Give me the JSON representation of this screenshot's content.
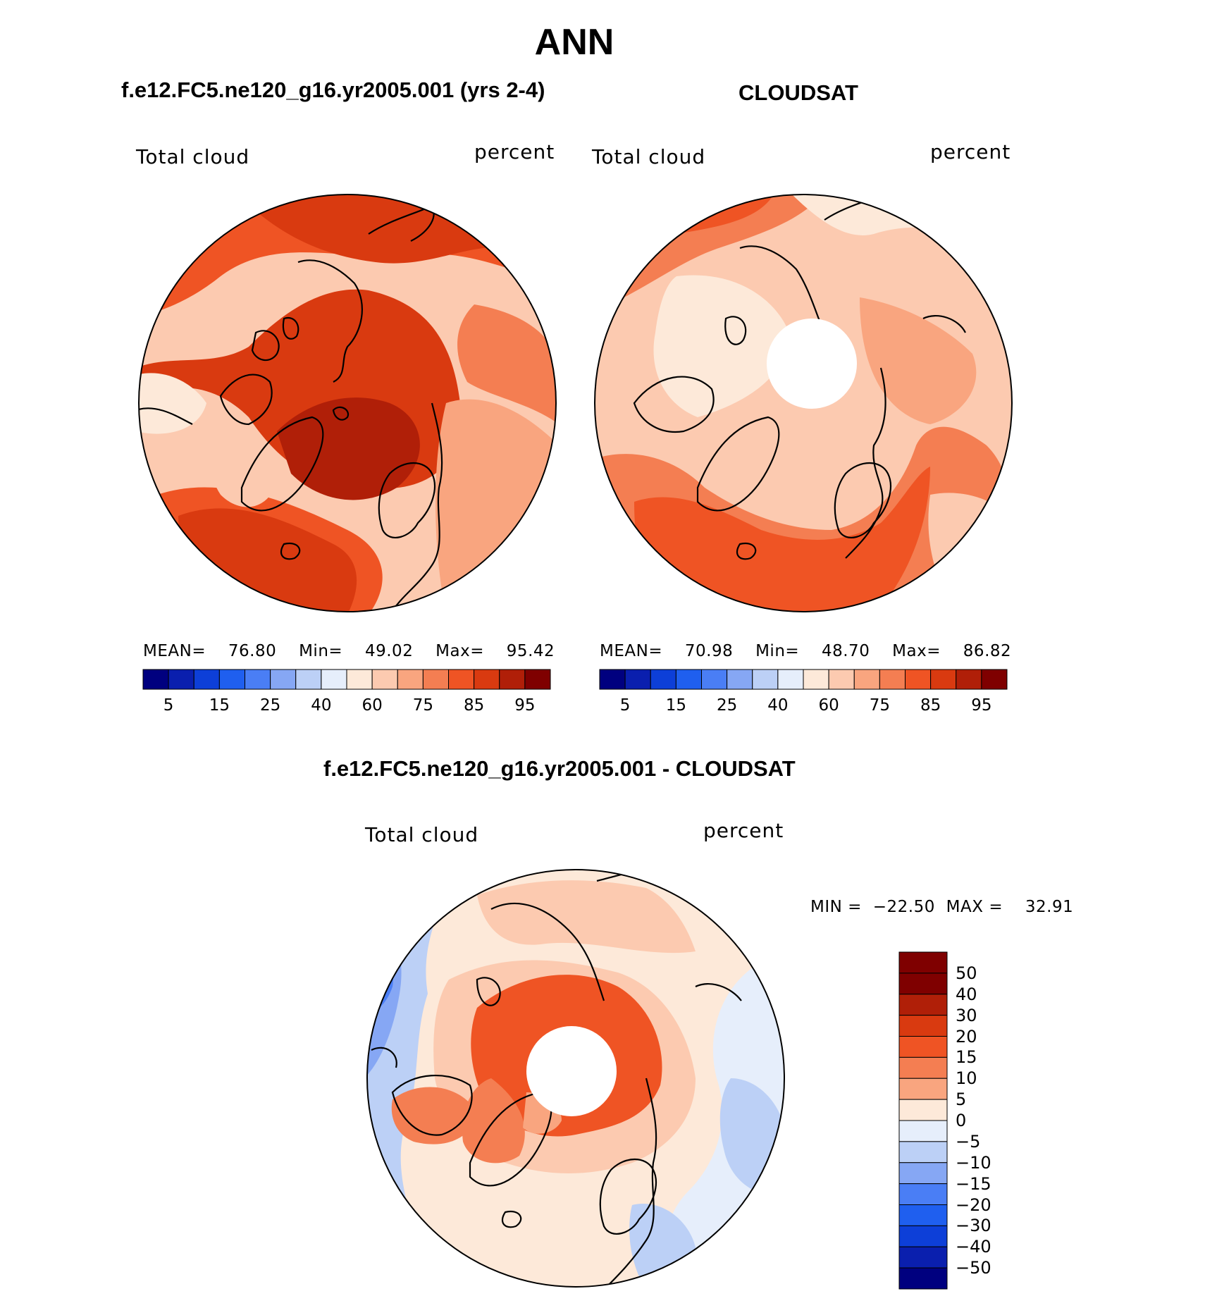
{
  "title": "ANN",
  "panels": [
    {
      "subtitle": "f.e12.FC5.ne120_g16.yr2005.001 (yrs 2-4)",
      "left_label": "Total cloud",
      "right_label": "percent",
      "stats": {
        "mean_label": "MEAN=",
        "mean": "76.80",
        "min_label": "Min=",
        "min": "49.02",
        "max_label": "Max=",
        "max": "95.42"
      },
      "polar_hole": false
    },
    {
      "subtitle": "CLOUDSAT",
      "left_label": "Total cloud",
      "right_label": "percent",
      "stats": {
        "mean_label": "MEAN=",
        "mean": "70.98",
        "min_label": "Min=",
        "min": "48.70",
        "max_label": "Max=",
        "max": "86.82"
      },
      "polar_hole": true
    }
  ],
  "abs_colorbar": {
    "colors": [
      "#00007f",
      "#0a1fae",
      "#0d3fd8",
      "#1f5fef",
      "#4a7ef5",
      "#86a7f4",
      "#bcd0f6",
      "#e6eefb",
      "#fde9d9",
      "#fccab0",
      "#f9a57f",
      "#f47e52",
      "#ef5424",
      "#d93a10",
      "#b01f08",
      "#7f0000"
    ],
    "labels": [
      "5",
      "15",
      "25",
      "40",
      "60",
      "75",
      "85",
      "95"
    ]
  },
  "diff_panel": {
    "subtitle": "f.e12.FC5.ne120_g16.yr2005.001 - CLOUDSAT",
    "left_label": "Total cloud",
    "right_label": "percent",
    "minmax": {
      "min_label": "MIN =",
      "min": "−22.50",
      "max_label": "MAX =",
      "max": "32.91"
    },
    "polar_hole": true
  },
  "diff_colorbar": {
    "colors": [
      "#7f0000",
      "#b01f08",
      "#d93a10",
      "#ef5424",
      "#f47e52",
      "#f9a57f",
      "#fde9d9",
      "#e6eefb",
      "#bcd0f6",
      "#86a7f4",
      "#4a7ef5",
      "#1f5fef",
      "#0d3fd8",
      "#0a1fae",
      "#00007f"
    ],
    "labels": [
      "50",
      "40",
      "30",
      "20",
      "15",
      "10",
      "5",
      "0",
      "−5",
      "−10",
      "−15",
      "−20",
      "−30",
      "−40",
      "−50"
    ]
  },
  "colors": {
    "land_outline": "#000000",
    "model_base": "#ef5424",
    "obs_base": "#fccab0",
    "diff_base": "#fde9d9"
  }
}
